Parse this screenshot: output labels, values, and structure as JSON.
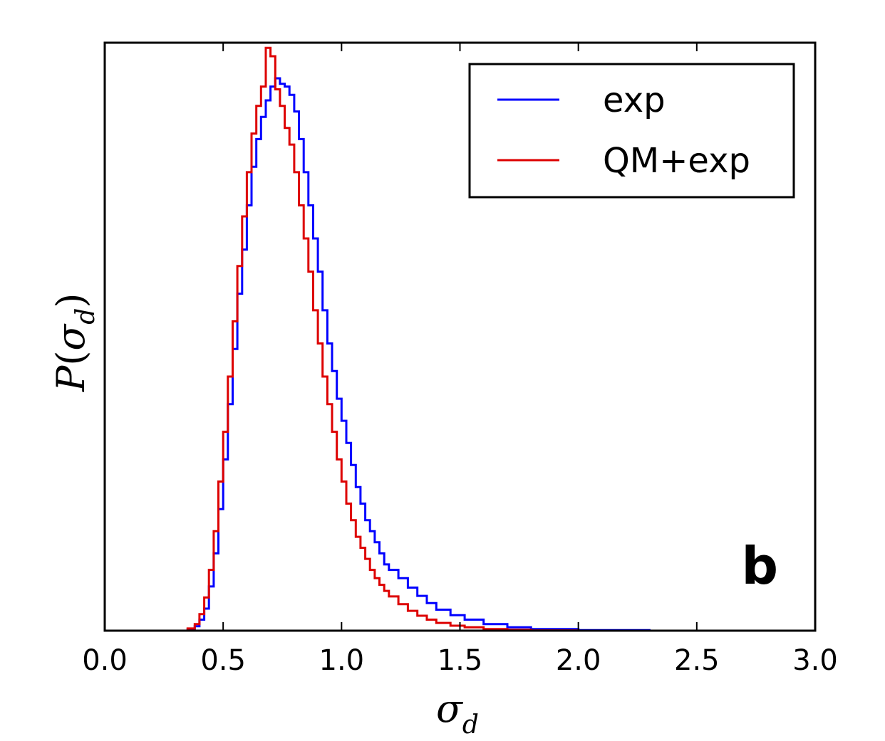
{
  "chart_data": {
    "type": "line",
    "style": "step-histogram",
    "xlabel_base": "σ",
    "xlabel_sub": "d",
    "ylabel_func": "P",
    "ylabel_open": "(",
    "ylabel_var": "σ",
    "ylabel_sub": "d",
    "ylabel_close": ")",
    "xlim": [
      0.0,
      3.0
    ],
    "ylim": [
      0,
      1.0
    ],
    "x_ticks": [
      0.0,
      0.5,
      1.0,
      1.5,
      2.0,
      2.5,
      3.0
    ],
    "x_tick_labels": [
      "0.0",
      "0.5",
      "1.0",
      "1.5",
      "2.0",
      "2.5",
      "3.0"
    ],
    "y_ticks_visible": false,
    "grid": false,
    "legend_position": "top-right",
    "panel_label": "b",
    "series": [
      {
        "name": "exp",
        "color": "#0000ff",
        "x": [
          0.0,
          0.3,
          0.35,
          0.38,
          0.4,
          0.42,
          0.44,
          0.46,
          0.48,
          0.5,
          0.52,
          0.54,
          0.56,
          0.58,
          0.6,
          0.62,
          0.64,
          0.66,
          0.68,
          0.7,
          0.72,
          0.74,
          0.76,
          0.78,
          0.8,
          0.82,
          0.84,
          0.86,
          0.88,
          0.9,
          0.92,
          0.94,
          0.96,
          0.98,
          1.0,
          1.02,
          1.04,
          1.06,
          1.08,
          1.1,
          1.12,
          1.14,
          1.16,
          1.18,
          1.2,
          1.24,
          1.28,
          1.32,
          1.36,
          1.4,
          1.46,
          1.52,
          1.6,
          1.7,
          1.8,
          2.0,
          2.3,
          3.0
        ],
        "values": [
          0.0,
          0.0,
          0.003,
          0.008,
          0.02,
          0.04,
          0.08,
          0.14,
          0.22,
          0.31,
          0.41,
          0.51,
          0.61,
          0.69,
          0.77,
          0.84,
          0.89,
          0.93,
          0.96,
          0.985,
          1.0,
          0.99,
          0.985,
          0.97,
          0.94,
          0.89,
          0.83,
          0.77,
          0.71,
          0.65,
          0.58,
          0.52,
          0.47,
          0.42,
          0.38,
          0.34,
          0.3,
          0.26,
          0.23,
          0.2,
          0.18,
          0.16,
          0.14,
          0.12,
          0.11,
          0.095,
          0.078,
          0.063,
          0.05,
          0.038,
          0.028,
          0.02,
          0.012,
          0.006,
          0.003,
          0.001,
          0.0,
          0.0
        ]
      },
      {
        "name": "QM+exp",
        "color": "#dd0000",
        "x": [
          0.0,
          0.3,
          0.35,
          0.38,
          0.4,
          0.42,
          0.44,
          0.46,
          0.48,
          0.5,
          0.52,
          0.54,
          0.56,
          0.58,
          0.6,
          0.62,
          0.64,
          0.66,
          0.68,
          0.7,
          0.72,
          0.74,
          0.76,
          0.78,
          0.8,
          0.82,
          0.84,
          0.86,
          0.88,
          0.9,
          0.92,
          0.94,
          0.96,
          0.98,
          1.0,
          1.02,
          1.04,
          1.06,
          1.08,
          1.1,
          1.12,
          1.14,
          1.16,
          1.18,
          1.2,
          1.24,
          1.28,
          1.32,
          1.36,
          1.4,
          1.46,
          1.52,
          1.6,
          1.7,
          1.8,
          2.0,
          2.3,
          3.0
        ],
        "values": [
          0.0,
          0.0,
          0.004,
          0.012,
          0.03,
          0.06,
          0.11,
          0.18,
          0.27,
          0.36,
          0.46,
          0.56,
          0.66,
          0.75,
          0.83,
          0.9,
          0.95,
          0.985,
          1.055,
          1.04,
          0.98,
          0.95,
          0.91,
          0.88,
          0.83,
          0.77,
          0.71,
          0.65,
          0.58,
          0.52,
          0.46,
          0.41,
          0.36,
          0.31,
          0.27,
          0.23,
          0.2,
          0.17,
          0.15,
          0.13,
          0.11,
          0.095,
          0.083,
          0.072,
          0.062,
          0.048,
          0.036,
          0.027,
          0.02,
          0.014,
          0.009,
          0.006,
          0.003,
          0.0015,
          0.0005,
          0.0,
          0.0,
          0.0
        ]
      }
    ]
  }
}
